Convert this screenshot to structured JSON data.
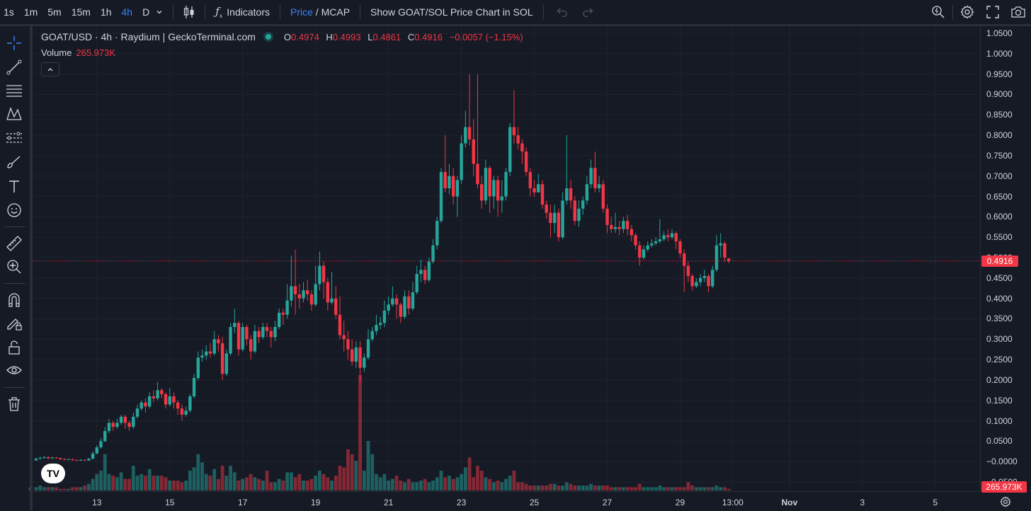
{
  "toolbar": {
    "timeframes": [
      "1s",
      "1m",
      "5m",
      "15m",
      "1h",
      "4h",
      "D"
    ],
    "active_timeframe": "4h",
    "indicators_label": "Indicators",
    "price_label": "Price",
    "slash": " / ",
    "mcap_label": "MCAP",
    "show_sol_label": "Show GOAT/SOL Price Chart in SOL"
  },
  "legend": {
    "symbol": "GOAT/USD · 4h · Raydium | GeckoTerminal.com",
    "o_label": "O",
    "o_value": "0.4974",
    "h_label": "H",
    "h_value": "0.4993",
    "l_label": "L",
    "l_value": "0.4861",
    "c_label": "C",
    "c_value": "0.4916",
    "change": "−0.0057 (−1.15%)",
    "volume_label": "Volume",
    "volume_value": "265.973K"
  },
  "price_tag": "0.4916",
  "volume_tag": "265.973K",
  "logo_text": "TV",
  "colors": {
    "up": "#26a69a",
    "down": "#f23645",
    "background": "#161a25",
    "accent": "#3b82f6"
  },
  "chart_data": {
    "type": "candlestick",
    "title": "",
    "xlabel": "",
    "ylabel": "",
    "ylim": [
      -0.05,
      1.05
    ],
    "yticks": [
      "1.0500",
      "1.0000",
      "0.9500",
      "0.9000",
      "0.8500",
      "0.8000",
      "0.7500",
      "0.7000",
      "0.6500",
      "0.6000",
      "0.5500",
      "0.5000",
      "0.4500",
      "0.4000",
      "0.3500",
      "0.3000",
      "0.2500",
      "0.2000",
      "0.1500",
      "0.1000",
      "0.0500",
      "−0.0000",
      "−0.0500"
    ],
    "ytick_values": [
      1.05,
      1.0,
      0.95,
      0.9,
      0.85,
      0.8,
      0.75,
      0.7,
      0.65,
      0.6,
      0.55,
      0.5,
      0.45,
      0.4,
      0.35,
      0.3,
      0.25,
      0.2,
      0.15,
      0.1,
      0.05,
      0.0,
      -0.05
    ],
    "xticks": [
      "13",
      "15",
      "17",
      "19",
      "21",
      "23",
      "25",
      "27",
      "29",
      "13:00",
      "Nov",
      "3",
      "5"
    ],
    "xtick_candle_index": [
      15,
      33,
      51,
      69,
      87,
      105,
      123,
      141,
      159,
      172,
      186,
      204,
      222
    ],
    "candles": [
      [
        0.003,
        0.007,
        0.01,
        0.002
      ],
      [
        0.007,
        0.009,
        0.012,
        0.005
      ],
      [
        0.009,
        0.011,
        0.013,
        0.007
      ],
      [
        0.011,
        0.008,
        0.013,
        0.006
      ],
      [
        0.008,
        0.01,
        0.012,
        0.006
      ],
      [
        0.01,
        0.009,
        0.011,
        0.007
      ],
      [
        0.009,
        0.006,
        0.01,
        0.004
      ],
      [
        0.006,
        0.005,
        0.008,
        0.003
      ],
      [
        0.005,
        0.006,
        0.007,
        0.003
      ],
      [
        0.006,
        0.004,
        0.007,
        0.002
      ],
      [
        0.004,
        0.003,
        0.005,
        0.002
      ],
      [
        0.003,
        0.004,
        0.006,
        0.002
      ],
      [
        0.004,
        0.003,
        0.005,
        0.002
      ],
      [
        0.003,
        0.007,
        0.009,
        0.002
      ],
      [
        0.007,
        0.02,
        0.025,
        0.005
      ],
      [
        0.02,
        0.035,
        0.04,
        0.018
      ],
      [
        0.035,
        0.05,
        0.058,
        0.032
      ],
      [
        0.05,
        0.075,
        0.085,
        0.048
      ],
      [
        0.075,
        0.095,
        0.105,
        0.07
      ],
      [
        0.095,
        0.085,
        0.1,
        0.075
      ],
      [
        0.085,
        0.095,
        0.105,
        0.08
      ],
      [
        0.095,
        0.11,
        0.115,
        0.09
      ],
      [
        0.11,
        0.095,
        0.115,
        0.08
      ],
      [
        0.095,
        0.085,
        0.1,
        0.075
      ],
      [
        0.085,
        0.11,
        0.12,
        0.08
      ],
      [
        0.11,
        0.13,
        0.14,
        0.105
      ],
      [
        0.13,
        0.145,
        0.15,
        0.125
      ],
      [
        0.145,
        0.135,
        0.155,
        0.12
      ],
      [
        0.135,
        0.16,
        0.17,
        0.13
      ],
      [
        0.16,
        0.155,
        0.175,
        0.145
      ],
      [
        0.155,
        0.175,
        0.195,
        0.15
      ],
      [
        0.175,
        0.165,
        0.18,
        0.155
      ],
      [
        0.165,
        0.14,
        0.17,
        0.13
      ],
      [
        0.14,
        0.16,
        0.18,
        0.135
      ],
      [
        0.16,
        0.145,
        0.17,
        0.13
      ],
      [
        0.145,
        0.13,
        0.15,
        0.115
      ],
      [
        0.13,
        0.115,
        0.14,
        0.1
      ],
      [
        0.115,
        0.125,
        0.135,
        0.11
      ],
      [
        0.125,
        0.16,
        0.165,
        0.12
      ],
      [
        0.16,
        0.205,
        0.215,
        0.155
      ],
      [
        0.205,
        0.255,
        0.27,
        0.2
      ],
      [
        0.255,
        0.26,
        0.275,
        0.245
      ],
      [
        0.26,
        0.27,
        0.285,
        0.25
      ],
      [
        0.27,
        0.265,
        0.29,
        0.255
      ],
      [
        0.265,
        0.3,
        0.32,
        0.26
      ],
      [
        0.3,
        0.29,
        0.31,
        0.27
      ],
      [
        0.29,
        0.215,
        0.305,
        0.2
      ],
      [
        0.215,
        0.265,
        0.275,
        0.21
      ],
      [
        0.265,
        0.33,
        0.34,
        0.26
      ],
      [
        0.33,
        0.34,
        0.375,
        0.315
      ],
      [
        0.34,
        0.275,
        0.345,
        0.26
      ],
      [
        0.275,
        0.33,
        0.34,
        0.27
      ],
      [
        0.33,
        0.3,
        0.335,
        0.285
      ],
      [
        0.3,
        0.27,
        0.31,
        0.25
      ],
      [
        0.27,
        0.32,
        0.335,
        0.265
      ],
      [
        0.32,
        0.305,
        0.33,
        0.29
      ],
      [
        0.305,
        0.33,
        0.34,
        0.3
      ],
      [
        0.33,
        0.32,
        0.34,
        0.305
      ],
      [
        0.32,
        0.305,
        0.33,
        0.28
      ],
      [
        0.305,
        0.33,
        0.345,
        0.295
      ],
      [
        0.33,
        0.365,
        0.375,
        0.325
      ],
      [
        0.365,
        0.36,
        0.375,
        0.335
      ],
      [
        0.36,
        0.395,
        0.435,
        0.35
      ],
      [
        0.395,
        0.43,
        0.505,
        0.38
      ],
      [
        0.43,
        0.41,
        0.52,
        0.36
      ],
      [
        0.41,
        0.4,
        0.435,
        0.375
      ],
      [
        0.4,
        0.42,
        0.44,
        0.39
      ],
      [
        0.42,
        0.41,
        0.445,
        0.395
      ],
      [
        0.41,
        0.385,
        0.42,
        0.37
      ],
      [
        0.385,
        0.435,
        0.48,
        0.38
      ],
      [
        0.435,
        0.48,
        0.515,
        0.42
      ],
      [
        0.48,
        0.44,
        0.49,
        0.4
      ],
      [
        0.44,
        0.39,
        0.45,
        0.37
      ],
      [
        0.39,
        0.4,
        0.465,
        0.385
      ],
      [
        0.4,
        0.36,
        0.43,
        0.35
      ],
      [
        0.36,
        0.31,
        0.405,
        0.3
      ],
      [
        0.31,
        0.3,
        0.345,
        0.27
      ],
      [
        0.3,
        0.275,
        0.32,
        0.25
      ],
      [
        0.275,
        0.245,
        0.3,
        0.235
      ],
      [
        0.245,
        0.28,
        0.295,
        0.23
      ],
      [
        0.28,
        0.23,
        0.295,
        0.195
      ],
      [
        0.23,
        0.255,
        0.265,
        0.22
      ],
      [
        0.255,
        0.3,
        0.325,
        0.25
      ],
      [
        0.3,
        0.32,
        0.33,
        0.295
      ],
      [
        0.32,
        0.335,
        0.36,
        0.31
      ],
      [
        0.335,
        0.34,
        0.355,
        0.325
      ],
      [
        0.34,
        0.37,
        0.395,
        0.33
      ],
      [
        0.37,
        0.385,
        0.405,
        0.36
      ],
      [
        0.385,
        0.4,
        0.43,
        0.38
      ],
      [
        0.4,
        0.385,
        0.41,
        0.35
      ],
      [
        0.385,
        0.355,
        0.39,
        0.34
      ],
      [
        0.355,
        0.405,
        0.42,
        0.35
      ],
      [
        0.405,
        0.375,
        0.42,
        0.36
      ],
      [
        0.375,
        0.415,
        0.44,
        0.37
      ],
      [
        0.415,
        0.46,
        0.48,
        0.41
      ],
      [
        0.46,
        0.47,
        0.495,
        0.44
      ],
      [
        0.47,
        0.445,
        0.48,
        0.435
      ],
      [
        0.445,
        0.49,
        0.5,
        0.44
      ],
      [
        0.49,
        0.53,
        0.545,
        0.485
      ],
      [
        0.53,
        0.59,
        0.6,
        0.52
      ],
      [
        0.59,
        0.71,
        0.72,
        0.585
      ],
      [
        0.71,
        0.67,
        0.8,
        0.66
      ],
      [
        0.67,
        0.7,
        0.73,
        0.655
      ],
      [
        0.7,
        0.65,
        0.72,
        0.63
      ],
      [
        0.65,
        0.69,
        0.7,
        0.6
      ],
      [
        0.69,
        0.78,
        0.8,
        0.68
      ],
      [
        0.78,
        0.82,
        0.86,
        0.77
      ],
      [
        0.82,
        0.79,
        0.95,
        0.775
      ],
      [
        0.79,
        0.73,
        0.84,
        0.7
      ],
      [
        0.73,
        0.68,
        0.95,
        0.67
      ],
      [
        0.68,
        0.64,
        0.7,
        0.62
      ],
      [
        0.64,
        0.72,
        0.74,
        0.63
      ],
      [
        0.72,
        0.65,
        0.725,
        0.61
      ],
      [
        0.65,
        0.69,
        0.7,
        0.62
      ],
      [
        0.69,
        0.64,
        0.7,
        0.6
      ],
      [
        0.64,
        0.65,
        0.69,
        0.61
      ],
      [
        0.65,
        0.71,
        0.72,
        0.64
      ],
      [
        0.71,
        0.82,
        0.83,
        0.7
      ],
      [
        0.82,
        0.8,
        0.91,
        0.78
      ],
      [
        0.8,
        0.78,
        0.82,
        0.765
      ],
      [
        0.78,
        0.76,
        0.79,
        0.73
      ],
      [
        0.76,
        0.71,
        0.77,
        0.7
      ],
      [
        0.71,
        0.67,
        0.72,
        0.65
      ],
      [
        0.67,
        0.66,
        0.69,
        0.65
      ],
      [
        0.66,
        0.68,
        0.705,
        0.66
      ],
      [
        0.68,
        0.63,
        0.69,
        0.62
      ],
      [
        0.63,
        0.61,
        0.64,
        0.595
      ],
      [
        0.61,
        0.585,
        0.63,
        0.55
      ],
      [
        0.585,
        0.61,
        0.63,
        0.56
      ],
      [
        0.61,
        0.55,
        0.62,
        0.54
      ],
      [
        0.55,
        0.64,
        0.66,
        0.545
      ],
      [
        0.64,
        0.67,
        0.8,
        0.63
      ],
      [
        0.67,
        0.64,
        0.69,
        0.62
      ],
      [
        0.64,
        0.59,
        0.65,
        0.58
      ],
      [
        0.59,
        0.62,
        0.64,
        0.575
      ],
      [
        0.62,
        0.64,
        0.65,
        0.605
      ],
      [
        0.64,
        0.68,
        0.7,
        0.63
      ],
      [
        0.68,
        0.72,
        0.74,
        0.67
      ],
      [
        0.72,
        0.67,
        0.76,
        0.66
      ],
      [
        0.67,
        0.68,
        0.7,
        0.66
      ],
      [
        0.68,
        0.62,
        0.69,
        0.61
      ],
      [
        0.62,
        0.58,
        0.63,
        0.56
      ],
      [
        0.58,
        0.57,
        0.6,
        0.56
      ],
      [
        0.57,
        0.575,
        0.61,
        0.56
      ],
      [
        0.575,
        0.57,
        0.59,
        0.555
      ],
      [
        0.57,
        0.59,
        0.6,
        0.56
      ],
      [
        0.59,
        0.57,
        0.605,
        0.555
      ],
      [
        0.57,
        0.555,
        0.58,
        0.54
      ],
      [
        0.555,
        0.53,
        0.56,
        0.52
      ],
      [
        0.53,
        0.5,
        0.54,
        0.48
      ],
      [
        0.5,
        0.52,
        0.53,
        0.495
      ],
      [
        0.52,
        0.53,
        0.54,
        0.515
      ],
      [
        0.53,
        0.535,
        0.545,
        0.525
      ],
      [
        0.535,
        0.54,
        0.55,
        0.53
      ],
      [
        0.54,
        0.545,
        0.595,
        0.535
      ],
      [
        0.545,
        0.555,
        0.565,
        0.54
      ],
      [
        0.555,
        0.55,
        0.57,
        0.54
      ],
      [
        0.55,
        0.56,
        0.57,
        0.545
      ],
      [
        0.56,
        0.54,
        0.565,
        0.52
      ],
      [
        0.54,
        0.51,
        0.545,
        0.5
      ],
      [
        0.51,
        0.48,
        0.52,
        0.415
      ],
      [
        0.48,
        0.455,
        0.49,
        0.44
      ],
      [
        0.455,
        0.43,
        0.46,
        0.42
      ],
      [
        0.43,
        0.44,
        0.45,
        0.425
      ],
      [
        0.44,
        0.45,
        0.46,
        0.43
      ],
      [
        0.45,
        0.455,
        0.47,
        0.44
      ],
      [
        0.455,
        0.43,
        0.46,
        0.415
      ],
      [
        0.43,
        0.47,
        0.48,
        0.425
      ],
      [
        0.47,
        0.53,
        0.555,
        0.465
      ],
      [
        0.53,
        0.535,
        0.56,
        0.5
      ],
      [
        0.535,
        0.5,
        0.54,
        0.49
      ],
      [
        0.4974,
        0.4916,
        0.4993,
        0.4861
      ]
    ],
    "volumes": [
      0.02,
      0.03,
      0.02,
      0.02,
      0.02,
      0.02,
      0.01,
      0.01,
      0.01,
      0.02,
      0.02,
      0.02,
      0.03,
      0.04,
      0.07,
      0.1,
      0.12,
      0.22,
      0.1,
      0.09,
      0.08,
      0.11,
      0.07,
      0.07,
      0.15,
      0.09,
      0.1,
      0.09,
      0.13,
      0.09,
      0.09,
      0.09,
      0.08,
      0.06,
      0.06,
      0.06,
      0.05,
      0.06,
      0.12,
      0.14,
      0.22,
      0.17,
      0.1,
      0.09,
      0.13,
      0.07,
      0.15,
      0.09,
      0.15,
      0.11,
      0.06,
      0.07,
      0.08,
      0.1,
      0.08,
      0.07,
      0.06,
      0.12,
      0.05,
      0.05,
      0.07,
      0.06,
      0.11,
      0.11,
      0.08,
      0.1,
      0.06,
      0.06,
      0.07,
      0.09,
      0.12,
      0.1,
      0.08,
      0.06,
      0.09,
      0.15,
      0.14,
      0.25,
      0.22,
      0.18,
      0.7,
      0.12,
      0.3,
      0.22,
      0.1,
      0.08,
      0.1,
      0.06,
      0.07,
      0.09,
      0.06,
      0.05,
      0.07,
      0.05,
      0.05,
      0.06,
      0.07,
      0.05,
      0.06,
      0.08,
      0.12,
      0.08,
      0.09,
      0.07,
      0.08,
      0.1,
      0.14,
      0.2,
      0.08,
      0.15,
      0.12,
      0.08,
      0.07,
      0.05,
      0.06,
      0.05,
      0.07,
      0.09,
      0.12,
      0.05,
      0.05,
      0.04,
      0.03,
      0.03,
      0.03,
      0.03,
      0.03,
      0.04,
      0.04,
      0.03,
      0.03,
      0.05,
      0.04,
      0.03,
      0.03,
      0.03,
      0.03,
      0.04,
      0.03,
      0.03,
      0.03,
      0.03,
      0.02,
      0.02,
      0.02,
      0.02,
      0.02,
      0.02,
      0.02,
      0.04,
      0.02,
      0.02,
      0.02,
      0.02,
      0.03,
      0.02,
      0.02,
      0.02,
      0.02,
      0.02,
      0.02,
      0.05,
      0.03,
      0.02,
      0.02,
      0.02,
      0.02,
      0.02,
      0.03,
      0.02,
      0.02,
      0.01
    ],
    "last_price": 0.4916
  }
}
